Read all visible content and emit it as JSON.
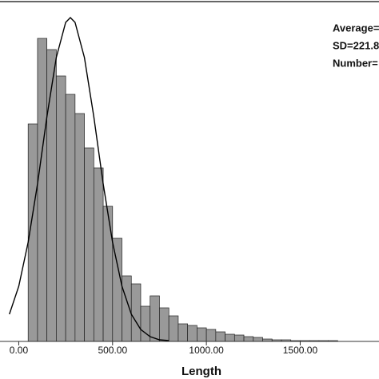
{
  "chart_data": {
    "type": "histogram",
    "x_label": "Length",
    "annotations": [
      "Average=",
      "SD=221.8",
      "Number="
    ],
    "bins": [
      50,
      100,
      150,
      200,
      250,
      300,
      350,
      400,
      450,
      500,
      550,
      600,
      650,
      700,
      750,
      800,
      850,
      900,
      950,
      1000,
      1050,
      1100,
      1150,
      1200,
      1250,
      1300,
      1350,
      1400,
      1450,
      1500,
      1550,
      1600,
      1650,
      1700
    ],
    "values": [
      272,
      379,
      365,
      332,
      309,
      285,
      242,
      217,
      169,
      129,
      82,
      72,
      44,
      57,
      42,
      32,
      22,
      20,
      17,
      15,
      12,
      9,
      8,
      6,
      5,
      3,
      2,
      2,
      1,
      1,
      1,
      1,
      1
    ],
    "color": "#999999",
    "curve": {
      "x": [
        -50,
        0,
        50,
        100,
        150,
        200,
        250,
        275,
        300,
        350,
        400,
        450,
        500,
        550,
        600,
        650,
        700,
        750,
        800
      ],
      "y": [
        34,
        69,
        124,
        197,
        281,
        355,
        399,
        405,
        399,
        355,
        281,
        197,
        124,
        69,
        34,
        15,
        6,
        2,
        1
      ],
      "color": "#000000"
    },
    "xlim": [
      -100,
      1920
    ],
    "ylim": [
      0,
      420
    ],
    "xticks": [
      {
        "value": 0,
        "label": "0.00"
      },
      {
        "value": 500,
        "label": "500.00"
      },
      {
        "value": 1000,
        "label": "1000.00"
      },
      {
        "value": 1500,
        "label": "1500.00"
      }
    ]
  }
}
